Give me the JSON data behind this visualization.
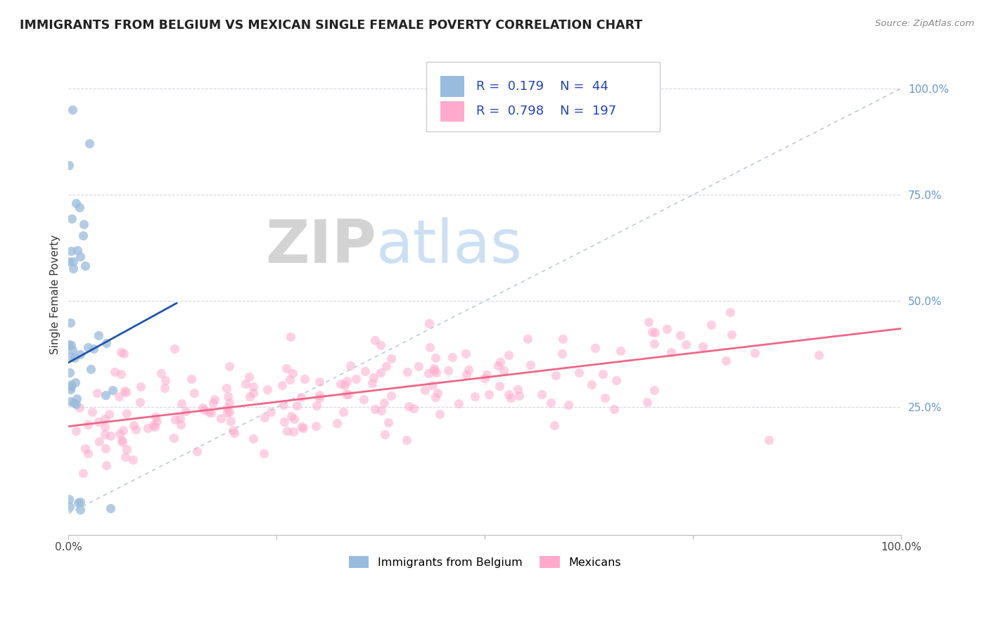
{
  "title": "IMMIGRANTS FROM BELGIUM VS MEXICAN SINGLE FEMALE POVERTY CORRELATION CHART",
  "source_text": "Source: ZipAtlas.com",
  "ylabel": "Single Female Poverty",
  "watermark_zip": "ZIP",
  "watermark_atlas": "atlas",
  "xlim": [
    0,
    1
  ],
  "ylim": [
    -0.05,
    1.08
  ],
  "legend_R1": "0.179",
  "legend_N1": "44",
  "legend_R2": "0.798",
  "legend_N2": "197",
  "legend_label1": "Immigrants from Belgium",
  "legend_label2": "Mexicans",
  "blue_color": "#99bbdd",
  "pink_color": "#ffaacc",
  "blue_line_color": "#2255aa",
  "pink_line_color": "#ee6688",
  "ref_line_color": "#aabbcc",
  "seed": 42,
  "belgium_trend_x": [
    0.0,
    0.13
  ],
  "belgium_trend_y": [
    0.355,
    0.495
  ],
  "mexico_trend_x": [
    0.0,
    1.0
  ],
  "mexico_trend_y": [
    0.205,
    0.435
  ]
}
